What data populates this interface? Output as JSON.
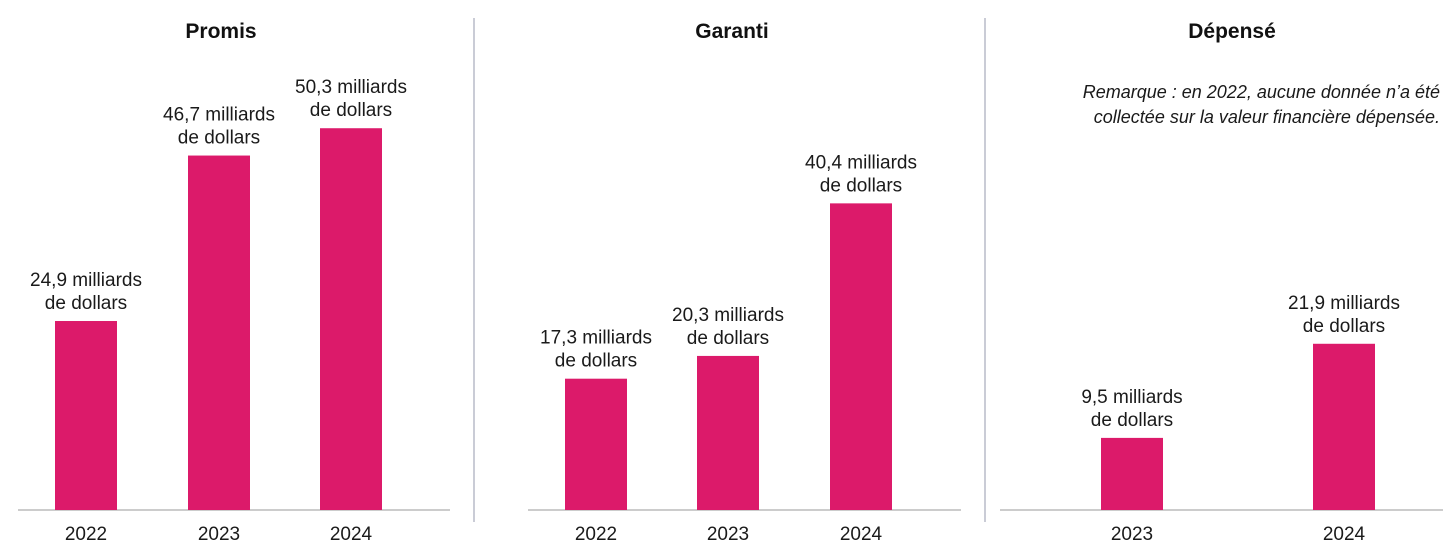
{
  "chart_data": [
    {
      "type": "bar",
      "title": "Promis",
      "categories": [
        "2022",
        "2023",
        "2024"
      ],
      "values": [
        24.9,
        46.7,
        50.3
      ],
      "data_labels": [
        [
          "24,9 milliards",
          "de dollars"
        ],
        [
          "46,7 milliards",
          "de dollars"
        ],
        [
          "50,3 milliards",
          "de dollars"
        ]
      ],
      "ylim": [
        0,
        65
      ],
      "grid": false,
      "color": "#DC1A6A"
    },
    {
      "type": "bar",
      "title": "Garanti",
      "categories": [
        "2022",
        "2023",
        "2024"
      ],
      "values": [
        17.3,
        20.3,
        40.4
      ],
      "data_labels": [
        [
          "17,3 milliards",
          "de dollars"
        ],
        [
          "20,3 milliards",
          "de dollars"
        ],
        [
          "40,4 milliards",
          "de dollars"
        ]
      ],
      "ylim": [
        0,
        65
      ],
      "grid": false,
      "color": "#DC1A6A"
    },
    {
      "type": "bar",
      "title": "Dépensé",
      "categories": [
        "2023",
        "2024"
      ],
      "values": [
        9.5,
        21.9
      ],
      "data_labels": [
        [
          "9,5 milliards",
          "de dollars"
        ],
        [
          "21,9 milliards",
          "de dollars"
        ]
      ],
      "note": [
        "Remarque : en 2022, aucune donnée n’a été",
        "collectée sur la valeur financière dépensée."
      ],
      "ylim": [
        0,
        65
      ],
      "grid": false,
      "color": "#DC1A6A"
    }
  ],
  "colors": {
    "bar": "#DC1A6A",
    "axis": "#9a9a9a",
    "divider": "#b8bcc8"
  }
}
